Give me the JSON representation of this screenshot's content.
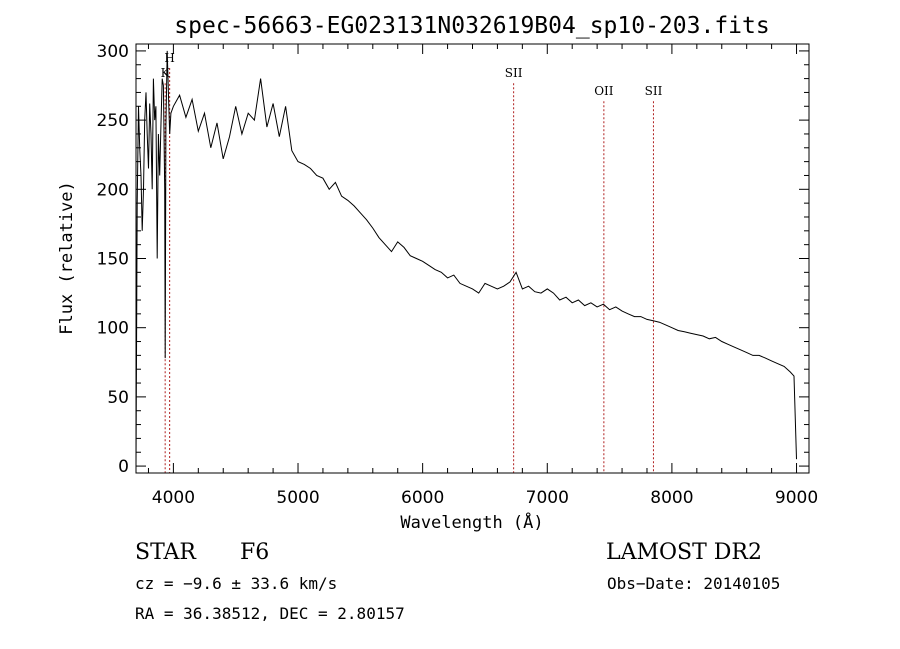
{
  "chart_data": {
    "type": "line",
    "title": "spec-56663-EG023131N032619B04_sp10-203.fits",
    "xlabel": "Wavelength (Å)",
    "ylabel": "Flux (relative)",
    "xlim": [
      3700,
      9100
    ],
    "ylim": [
      -5,
      305
    ],
    "xticks": [
      4000,
      5000,
      6000,
      7000,
      8000,
      9000
    ],
    "yticks": [
      0,
      50,
      100,
      150,
      200,
      250,
      300
    ],
    "spectral_lines": [
      {
        "label": "H",
        "wavelength": 3970,
        "label_flux": 292
      },
      {
        "label": "K",
        "wavelength": 3934,
        "label_flux": 281
      },
      {
        "label": "SII",
        "wavelength": 6730,
        "label_flux": 281
      },
      {
        "label": "OII",
        "wavelength": 7454,
        "label_flux": 268
      },
      {
        "label": "SII",
        "wavelength": 7852,
        "label_flux": 268
      }
    ],
    "series": [
      {
        "x": [
          3700,
          3710,
          3720,
          3730,
          3740,
          3750,
          3760,
          3770,
          3780,
          3790,
          3800,
          3810,
          3820,
          3830,
          3840,
          3850,
          3860,
          3870,
          3880,
          3890,
          3900,
          3910,
          3920,
          3930,
          3934,
          3940,
          3950,
          3960,
          3970,
          3980,
          4000,
          4050,
          4100,
          4150,
          4200,
          4250,
          4300,
          4350,
          4400,
          4450,
          4500,
          4550,
          4600,
          4650,
          4700,
          4750,
          4800,
          4850,
          4900,
          4950,
          5000,
          5050,
          5100,
          5150,
          5200,
          5250,
          5300,
          5350,
          5400,
          5450,
          5500,
          5550,
          5600,
          5650,
          5700,
          5750,
          5800,
          5850,
          5900,
          5950,
          6000,
          6050,
          6100,
          6150,
          6200,
          6250,
          6300,
          6350,
          6400,
          6450,
          6500,
          6550,
          6600,
          6650,
          6700,
          6750,
          6800,
          6850,
          6900,
          6950,
          7000,
          7050,
          7100,
          7150,
          7200,
          7250,
          7300,
          7350,
          7400,
          7450,
          7500,
          7550,
          7600,
          7650,
          7700,
          7750,
          7800,
          7850,
          7900,
          7950,
          8000,
          8050,
          8100,
          8150,
          8200,
          8250,
          8300,
          8350,
          8400,
          8450,
          8500,
          8550,
          8600,
          8650,
          8700,
          8750,
          8800,
          8850,
          8900,
          8950,
          8980,
          9000
        ],
        "y": [
          0,
          190,
          260,
          230,
          210,
          170,
          200,
          250,
          270,
          240,
          215,
          262,
          240,
          200,
          280,
          250,
          260,
          150,
          240,
          210,
          245,
          280,
          275,
          200,
          78,
          245,
          300,
          270,
          240,
          255,
          260,
          268,
          252,
          265,
          242,
          255,
          230,
          248,
          222,
          238,
          260,
          240,
          255,
          250,
          280,
          245,
          262,
          238,
          260,
          228,
          220,
          218,
          215,
          210,
          208,
          200,
          205,
          195,
          192,
          188,
          183,
          178,
          172,
          165,
          160,
          155,
          162,
          158,
          152,
          150,
          148,
          145,
          142,
          140,
          136,
          138,
          132,
          130,
          128,
          125,
          132,
          130,
          128,
          130,
          133,
          140,
          128,
          130,
          126,
          125,
          128,
          125,
          120,
          122,
          118,
          120,
          116,
          118,
          115,
          117,
          113,
          115,
          112,
          110,
          108,
          108,
          106,
          105,
          104,
          102,
          100,
          98,
          97,
          96,
          95,
          94,
          92,
          93,
          90,
          88,
          86,
          84,
          82,
          80,
          80,
          78,
          76,
          74,
          72,
          68,
          65,
          5
        ]
      }
    ]
  },
  "footer": {
    "class": "STAR",
    "subclass": "F6",
    "survey": "LAMOST DR2",
    "cz": "cz = −9.6 ± 33.6 km/s",
    "obs_date": "Obs−Date: 20140105",
    "coords": "RA =  36.38512, DEC =    2.80157"
  }
}
